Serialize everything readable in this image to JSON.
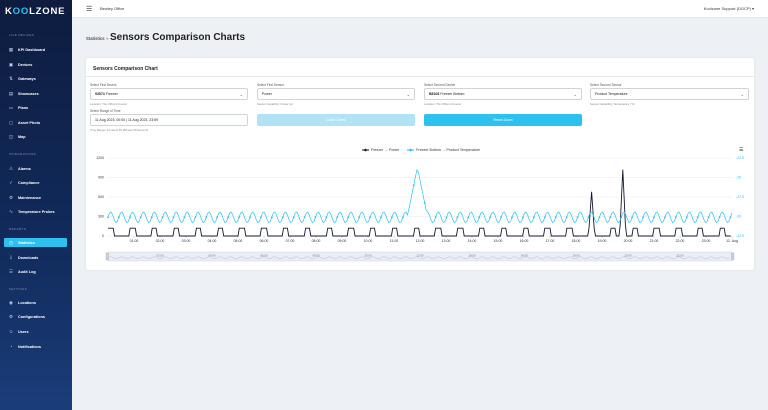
{
  "logo": {
    "pre": "K",
    "o1": "O",
    "o2": "O",
    "post": "LZONE",
    "full": "KOOLZONE"
  },
  "topbar": {
    "office": "Bewley Office",
    "user": "Koolzone Support (DGCP)"
  },
  "sidebar": {
    "sections": [
      {
        "label": "LIVE DEVICES",
        "top": 33
      },
      {
        "label": "INTEGRATIONS",
        "top": 152
      },
      {
        "label": "REPORTS",
        "top": 227
      },
      {
        "label": "SETTINGS",
        "top": 287
      }
    ],
    "items": [
      {
        "label": "KPI Dashboard",
        "icon": "▦",
        "name": "kpi-dashboard",
        "top": 45
      },
      {
        "label": "Devices",
        "icon": "▣",
        "name": "devices",
        "top": 60
      },
      {
        "label": "Gateways",
        "icon": "⇅",
        "name": "gateways",
        "top": 74
      },
      {
        "label": "Showcases",
        "icon": "▤",
        "name": "showcases",
        "top": 89
      },
      {
        "label": "Plans",
        "icon": "▭",
        "name": "plans",
        "top": 103
      },
      {
        "label": "Asset Photo",
        "icon": "▢",
        "name": "asset-photo",
        "top": 118
      },
      {
        "label": "Map",
        "icon": "◫",
        "name": "map",
        "top": 132
      },
      {
        "label": "Alarms",
        "icon": "⚠",
        "name": "alarms",
        "top": 164
      },
      {
        "label": "Compliance",
        "icon": "✓",
        "name": "compliance",
        "top": 178
      },
      {
        "label": "Maintenance",
        "icon": "⚙",
        "name": "maintenance",
        "top": 193
      },
      {
        "label": "Temperature Probes",
        "icon": "∿",
        "name": "temperature-probes",
        "top": 207
      },
      {
        "label": "Statistics",
        "icon": "◷",
        "name": "statistics",
        "top": 238,
        "active": true
      },
      {
        "label": "Downloads",
        "icon": "⇩",
        "name": "downloads",
        "top": 253
      },
      {
        "label": "Audit Log",
        "icon": "☰",
        "name": "audit-log",
        "top": 267
      },
      {
        "label": "Locations",
        "icon": "◉",
        "name": "locations",
        "top": 298
      },
      {
        "label": "Configurations",
        "icon": "⚙",
        "name": "configurations",
        "top": 312
      },
      {
        "label": "Users",
        "icon": "☺",
        "name": "users",
        "top": 327
      },
      {
        "label": "Notifications",
        "icon": "◔",
        "name": "notifications",
        "top": 342
      }
    ]
  },
  "breadcrumb": {
    "parent": "Statistics",
    "sep": "»",
    "title": "Sensors Comparison Charts"
  },
  "card": {
    "title": "Sensors Comparison Chart"
  },
  "form": {
    "first_device": {
      "label": "Select First Device",
      "id": "93574",
      "name": "Freezer",
      "help": "Location: The Office's Freezer"
    },
    "first_sensor": {
      "label": "Select First Sensor",
      "value": "Power",
      "help": "Sensor Capability: Power (w)"
    },
    "second_device": {
      "label": "Select Second Device",
      "id": "B8108",
      "name": "Freezer Bottom",
      "help": "Location: The Office's Freezer"
    },
    "second_sensor": {
      "label": "Select Second Sensor",
      "value": "Product Temperature",
      "help": "Sensor Capability: Temperature (°C)"
    },
    "range": {
      "label": "Select Range of Time",
      "value": "11 Aug 2023, 00:00 | 11 Aug 2023, 23:59",
      "help": "Time Range: 23 Hours 59 Minutes 59 Seconds"
    },
    "load_label": "Load Charts",
    "reset_label": "Reset Zoom"
  },
  "chart_data": {
    "type": "line",
    "series": [
      {
        "name": "Freezer → Power",
        "color": "#141a33",
        "axis": "left"
      },
      {
        "name": "Freezer Bottom → Product Temperature",
        "color": "#2ec0ef",
        "axis": "right"
      }
    ],
    "y_left_ticks": [
      "1200",
      "900",
      "600",
      "300",
      "0"
    ],
    "y_right_ticks": [
      "-22.5",
      "-25",
      "-27.5",
      "-30",
      "-32.5"
    ],
    "x_ticks": [
      "01:00",
      "02:00",
      "03:00",
      "04:00",
      "05:00",
      "06:00",
      "07:00",
      "08:00",
      "09:00",
      "10:00",
      "11:00",
      "12:00",
      "13:00",
      "14:00",
      "15:00",
      "16:00",
      "17:00",
      "18:00",
      "19:00",
      "20:00",
      "21:00",
      "22:00",
      "23:00",
      "12. Aug"
    ],
    "navigator_ticks": [
      "02:00",
      "04:00",
      "06:00",
      "08:00",
      "10:00",
      "12:00",
      "14:00",
      "16:00",
      "18:00",
      "20:00",
      "22:00"
    ],
    "x_range_hours": [
      0,
      24
    ],
    "ylim_left": [
      0,
      1200
    ],
    "ylim_right": [
      -32.5,
      -22.5
    ],
    "power_baseline_w": 0,
    "power_cycle_peak_w": 120,
    "power_spikes": [
      {
        "hour": 18.6,
        "w": 680
      },
      {
        "hour": 19.8,
        "w": 1020
      }
    ],
    "temp_oscillation_c": [
      -30.8,
      -29.4
    ],
    "temp_spike": {
      "hour": 11.9,
      "c": -23.7
    }
  }
}
